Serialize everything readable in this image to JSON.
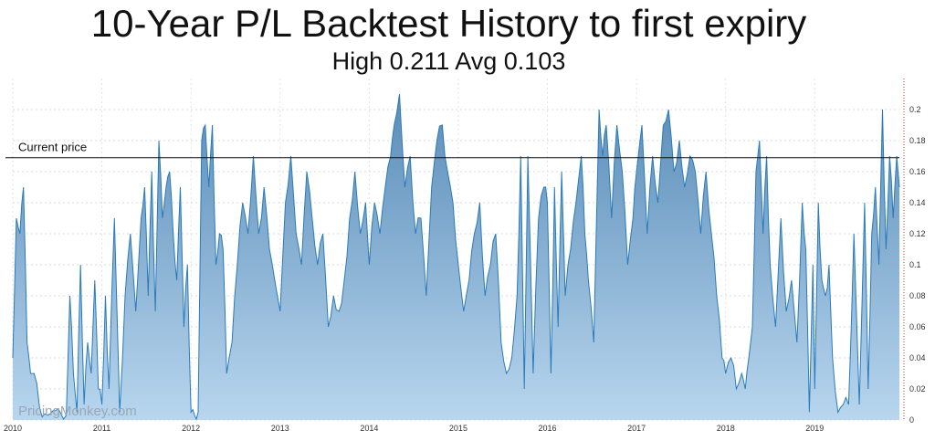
{
  "chart_data": {
    "type": "area",
    "title": "10-Year P/L Backtest History to first expiry",
    "subtitle": "High 0.211 Avg 0.103",
    "xlabel": "",
    "ylabel": "",
    "xlim": [
      2010.0,
      2019.95
    ],
    "ylim": [
      0,
      0.22
    ],
    "grid": true,
    "x_ticks": [
      "2010",
      "2011",
      "2012",
      "2013",
      "2014",
      "2015",
      "2016",
      "2017",
      "2018",
      "2019"
    ],
    "y_ticks": [
      "0",
      "0.02",
      "0.04",
      "0.06",
      "0.08",
      "0.1",
      "0.12",
      "0.14",
      "0.16",
      "0.18",
      "0.2"
    ],
    "current_price": 0.169,
    "current_price_label": "Current price",
    "watermark": "PricingMonkey.com",
    "colors": {
      "line": "#2b7bba",
      "fill_top": "#5a8cb8",
      "fill_bottom": "#b8d6ee",
      "ref_line": "#111111",
      "right_axis": "#c0392b"
    },
    "series": [
      {
        "x": [
          2010.0,
          2010.04,
          2010.08,
          2010.12,
          2010.16,
          2010.2,
          2010.24,
          2010.3,
          2010.36,
          2010.42,
          2010.48,
          2010.54,
          2010.6,
          2010.64,
          2010.68,
          2010.72,
          2010.76,
          2010.8,
          2010.84,
          2010.88,
          2010.92,
          2010.96,
          2011.0,
          2011.04,
          2011.08,
          2011.14,
          2011.2,
          2011.26,
          2011.32,
          2011.38,
          2011.44,
          2011.48,
          2011.52,
          2011.56,
          2011.6,
          2011.64,
          2011.68,
          2011.72,
          2011.76,
          2011.8,
          2011.84,
          2011.88,
          2011.92,
          2011.96,
          2012.0,
          2012.04,
          2012.08,
          2012.12,
          2012.16,
          2012.2,
          2012.24,
          2012.28,
          2012.32,
          2012.36,
          2012.4,
          2012.46,
          2012.52,
          2012.58,
          2012.64,
          2012.7,
          2012.76,
          2012.82,
          2012.88,
          2012.94,
          2013.0,
          2013.06,
          2013.12,
          2013.18,
          2013.24,
          2013.3,
          2013.36,
          2013.42,
          2013.48,
          2013.54,
          2013.6,
          2013.66,
          2013.72,
          2013.78,
          2013.84,
          2013.9,
          2013.96,
          2014.0,
          2014.06,
          2014.12,
          2014.18,
          2014.24,
          2014.28,
          2014.34,
          2014.4,
          2014.46,
          2014.52,
          2014.58,
          2014.64,
          2014.7,
          2014.76,
          2014.82,
          2014.88,
          2014.94,
          2015.0,
          2015.06,
          2015.12,
          2015.18,
          2015.24,
          2015.3,
          2015.36,
          2015.42,
          2015.48,
          2015.54,
          2015.6,
          2015.66,
          2015.7,
          2015.74,
          2015.78,
          2015.84,
          2015.9,
          2015.96,
          2016.0,
          2016.04,
          2016.08,
          2016.12,
          2016.16,
          2016.2,
          2016.26,
          2016.32,
          2016.38,
          2016.42,
          2016.46,
          2016.52,
          2016.58,
          2016.62,
          2016.66,
          2016.72,
          2016.78,
          2016.84,
          2016.9,
          2016.96,
          2017.0,
          2017.06,
          2017.12,
          2017.18,
          2017.24,
          2017.3,
          2017.36,
          2017.42,
          2017.48,
          2017.54,
          2017.6,
          2017.66,
          2017.72,
          2017.78,
          2017.84,
          2017.9,
          2017.96,
          2018.0,
          2018.06,
          2018.12,
          2018.18,
          2018.22,
          2018.26,
          2018.3,
          2018.34,
          2018.38,
          2018.42,
          2018.46,
          2018.5,
          2018.56,
          2018.62,
          2018.68,
          2018.74,
          2018.8,
          2018.86,
          2018.9,
          2018.94,
          2018.98,
          2019.0,
          2019.04,
          2019.08,
          2019.12,
          2019.16,
          2019.2,
          2019.26,
          2019.32,
          2019.38,
          2019.44,
          2019.5,
          2019.56,
          2019.6,
          2019.64,
          2019.68,
          2019.72,
          2019.76,
          2019.8,
          2019.84,
          2019.88,
          2019.92,
          2019.95
        ],
        "y": [
          0.04,
          0.13,
          0.12,
          0.15,
          0.05,
          0.03,
          0.03,
          0.008,
          0.004,
          0.004,
          0.006,
          0.004,
          0.003,
          0.08,
          0.03,
          0.005,
          0.1,
          0.01,
          0.05,
          0.03,
          0.09,
          0.02,
          0.01,
          0.08,
          0.02,
          0.13,
          0.005,
          0.08,
          0.12,
          0.07,
          0.13,
          0.15,
          0.08,
          0.16,
          0.07,
          0.18,
          0.13,
          0.15,
          0.16,
          0.12,
          0.09,
          0.15,
          0.06,
          0.1,
          0.005,
          0.003,
          0.005,
          0.18,
          0.19,
          0.15,
          0.19,
          0.1,
          0.12,
          0.11,
          0.03,
          0.05,
          0.1,
          0.14,
          0.12,
          0.17,
          0.12,
          0.15,
          0.11,
          0.09,
          0.07,
          0.14,
          0.17,
          0.12,
          0.1,
          0.16,
          0.13,
          0.1,
          0.12,
          0.06,
          0.08,
          0.07,
          0.09,
          0.13,
          0.16,
          0.12,
          0.14,
          0.1,
          0.14,
          0.12,
          0.15,
          0.17,
          0.19,
          0.21,
          0.15,
          0.17,
          0.12,
          0.13,
          0.08,
          0.15,
          0.18,
          0.19,
          0.16,
          0.14,
          0.1,
          0.07,
          0.09,
          0.12,
          0.14,
          0.08,
          0.1,
          0.12,
          0.05,
          0.03,
          0.04,
          0.08,
          0.17,
          0.02,
          0.17,
          0.03,
          0.13,
          0.15,
          0.14,
          0.03,
          0.15,
          0.06,
          0.16,
          0.08,
          0.11,
          0.14,
          0.17,
          0.12,
          0.09,
          0.05,
          0.2,
          0.17,
          0.19,
          0.13,
          0.19,
          0.16,
          0.1,
          0.13,
          0.16,
          0.19,
          0.12,
          0.17,
          0.14,
          0.19,
          0.2,
          0.16,
          0.18,
          0.15,
          0.17,
          0.16,
          0.12,
          0.16,
          0.12,
          0.08,
          0.04,
          0.03,
          0.04,
          0.02,
          0.03,
          0.02,
          0.04,
          0.06,
          0.16,
          0.18,
          0.12,
          0.17,
          0.1,
          0.06,
          0.13,
          0.07,
          0.09,
          0.05,
          0.14,
          0.11,
          0.005,
          0.1,
          0.02,
          0.14,
          0.09,
          0.08,
          0.1,
          0.04,
          0.005,
          0.01,
          0.01,
          0.12,
          0.01,
          0.14,
          0.02,
          0.12,
          0.15,
          0.1,
          0.2,
          0.11,
          0.17,
          0.13,
          0.17,
          0.15
        ]
      }
    ]
  }
}
